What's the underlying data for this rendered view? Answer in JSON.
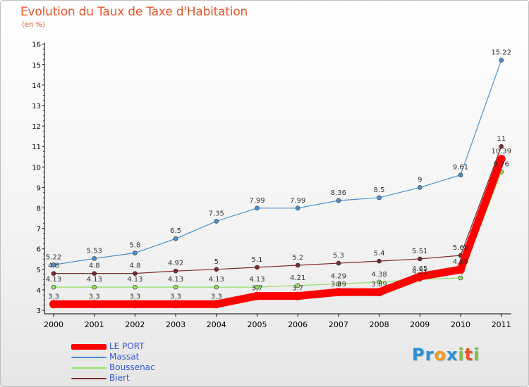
{
  "chart_data": {
    "type": "line",
    "title": "Evolution du Taux de Taxe d'Habitation",
    "subtitle": "(en %)",
    "x": [
      "2000",
      "2001",
      "2002",
      "2003",
      "2004",
      "2005",
      "2006",
      "2007",
      "2008",
      "2009",
      "2010",
      "2011"
    ],
    "ylim": [
      3,
      16
    ],
    "yticks": [
      3,
      4,
      5,
      6,
      7,
      8,
      9,
      10,
      11,
      12,
      13,
      14,
      15,
      16
    ],
    "grid": false,
    "legend_position": "bottom-left",
    "series": [
      {
        "name": "LE PORT",
        "color": "#ff0000",
        "values": [
          3.3,
          3.3,
          3.3,
          3.3,
          3.3,
          3.7,
          3.7,
          3.89,
          3.89,
          4.65,
          4.99,
          10.39
        ],
        "labels": [
          "3.3",
          "3.3",
          "3.3",
          "3.3",
          "3.3",
          "3.7",
          "3.7",
          "3.89",
          "3.89",
          "4.65",
          "4.99",
          "10.39"
        ]
      },
      {
        "name": "Massat",
        "color": "#4a90d0",
        "values": [
          5.22,
          5.53,
          5.8,
          6.5,
          7.35,
          7.99,
          7.99,
          8.36,
          8.5,
          9,
          9.61,
          15.22
        ],
        "labels": [
          "5.22",
          "5.53",
          "5.8",
          "6.5",
          "7.35",
          "7.99",
          "7.99",
          "8.36",
          "8.5",
          "9",
          "9.61",
          "15.22"
        ]
      },
      {
        "name": "Boussenac",
        "color": "#90e060",
        "values": [
          4.13,
          4.13,
          4.13,
          4.13,
          4.13,
          4.13,
          4.21,
          4.29,
          4.38,
          4.51,
          4.58,
          9.76
        ],
        "labels": [
          "4.13",
          "4.13",
          "4.13",
          "4.13",
          "4.13",
          "4.13",
          "4.21",
          "4.29",
          "4.38",
          "4.51",
          "",
          "9.76"
        ]
      },
      {
        "name": "Biert",
        "color": "#7a2a2a",
        "values": [
          4.8,
          4.8,
          4.8,
          4.92,
          5,
          5.1,
          5.2,
          5.3,
          5.4,
          5.51,
          5.68,
          11
        ],
        "labels": [
          "4.8",
          "4.8",
          "4.8",
          "4.92",
          "5",
          "5.1",
          "5.2",
          "5.3",
          "5.4",
          "5.51",
          "5.68",
          "11"
        ]
      }
    ]
  },
  "brand": {
    "letters": [
      "P",
      "r",
      "o",
      "x",
      "i",
      "t",
      "i"
    ],
    "colors": [
      "#2a8fd8",
      "#2a8fd8",
      "#f39a1e",
      "#2a8fd8",
      "#7ac143",
      "#e8552a",
      "#7ac143"
    ]
  }
}
